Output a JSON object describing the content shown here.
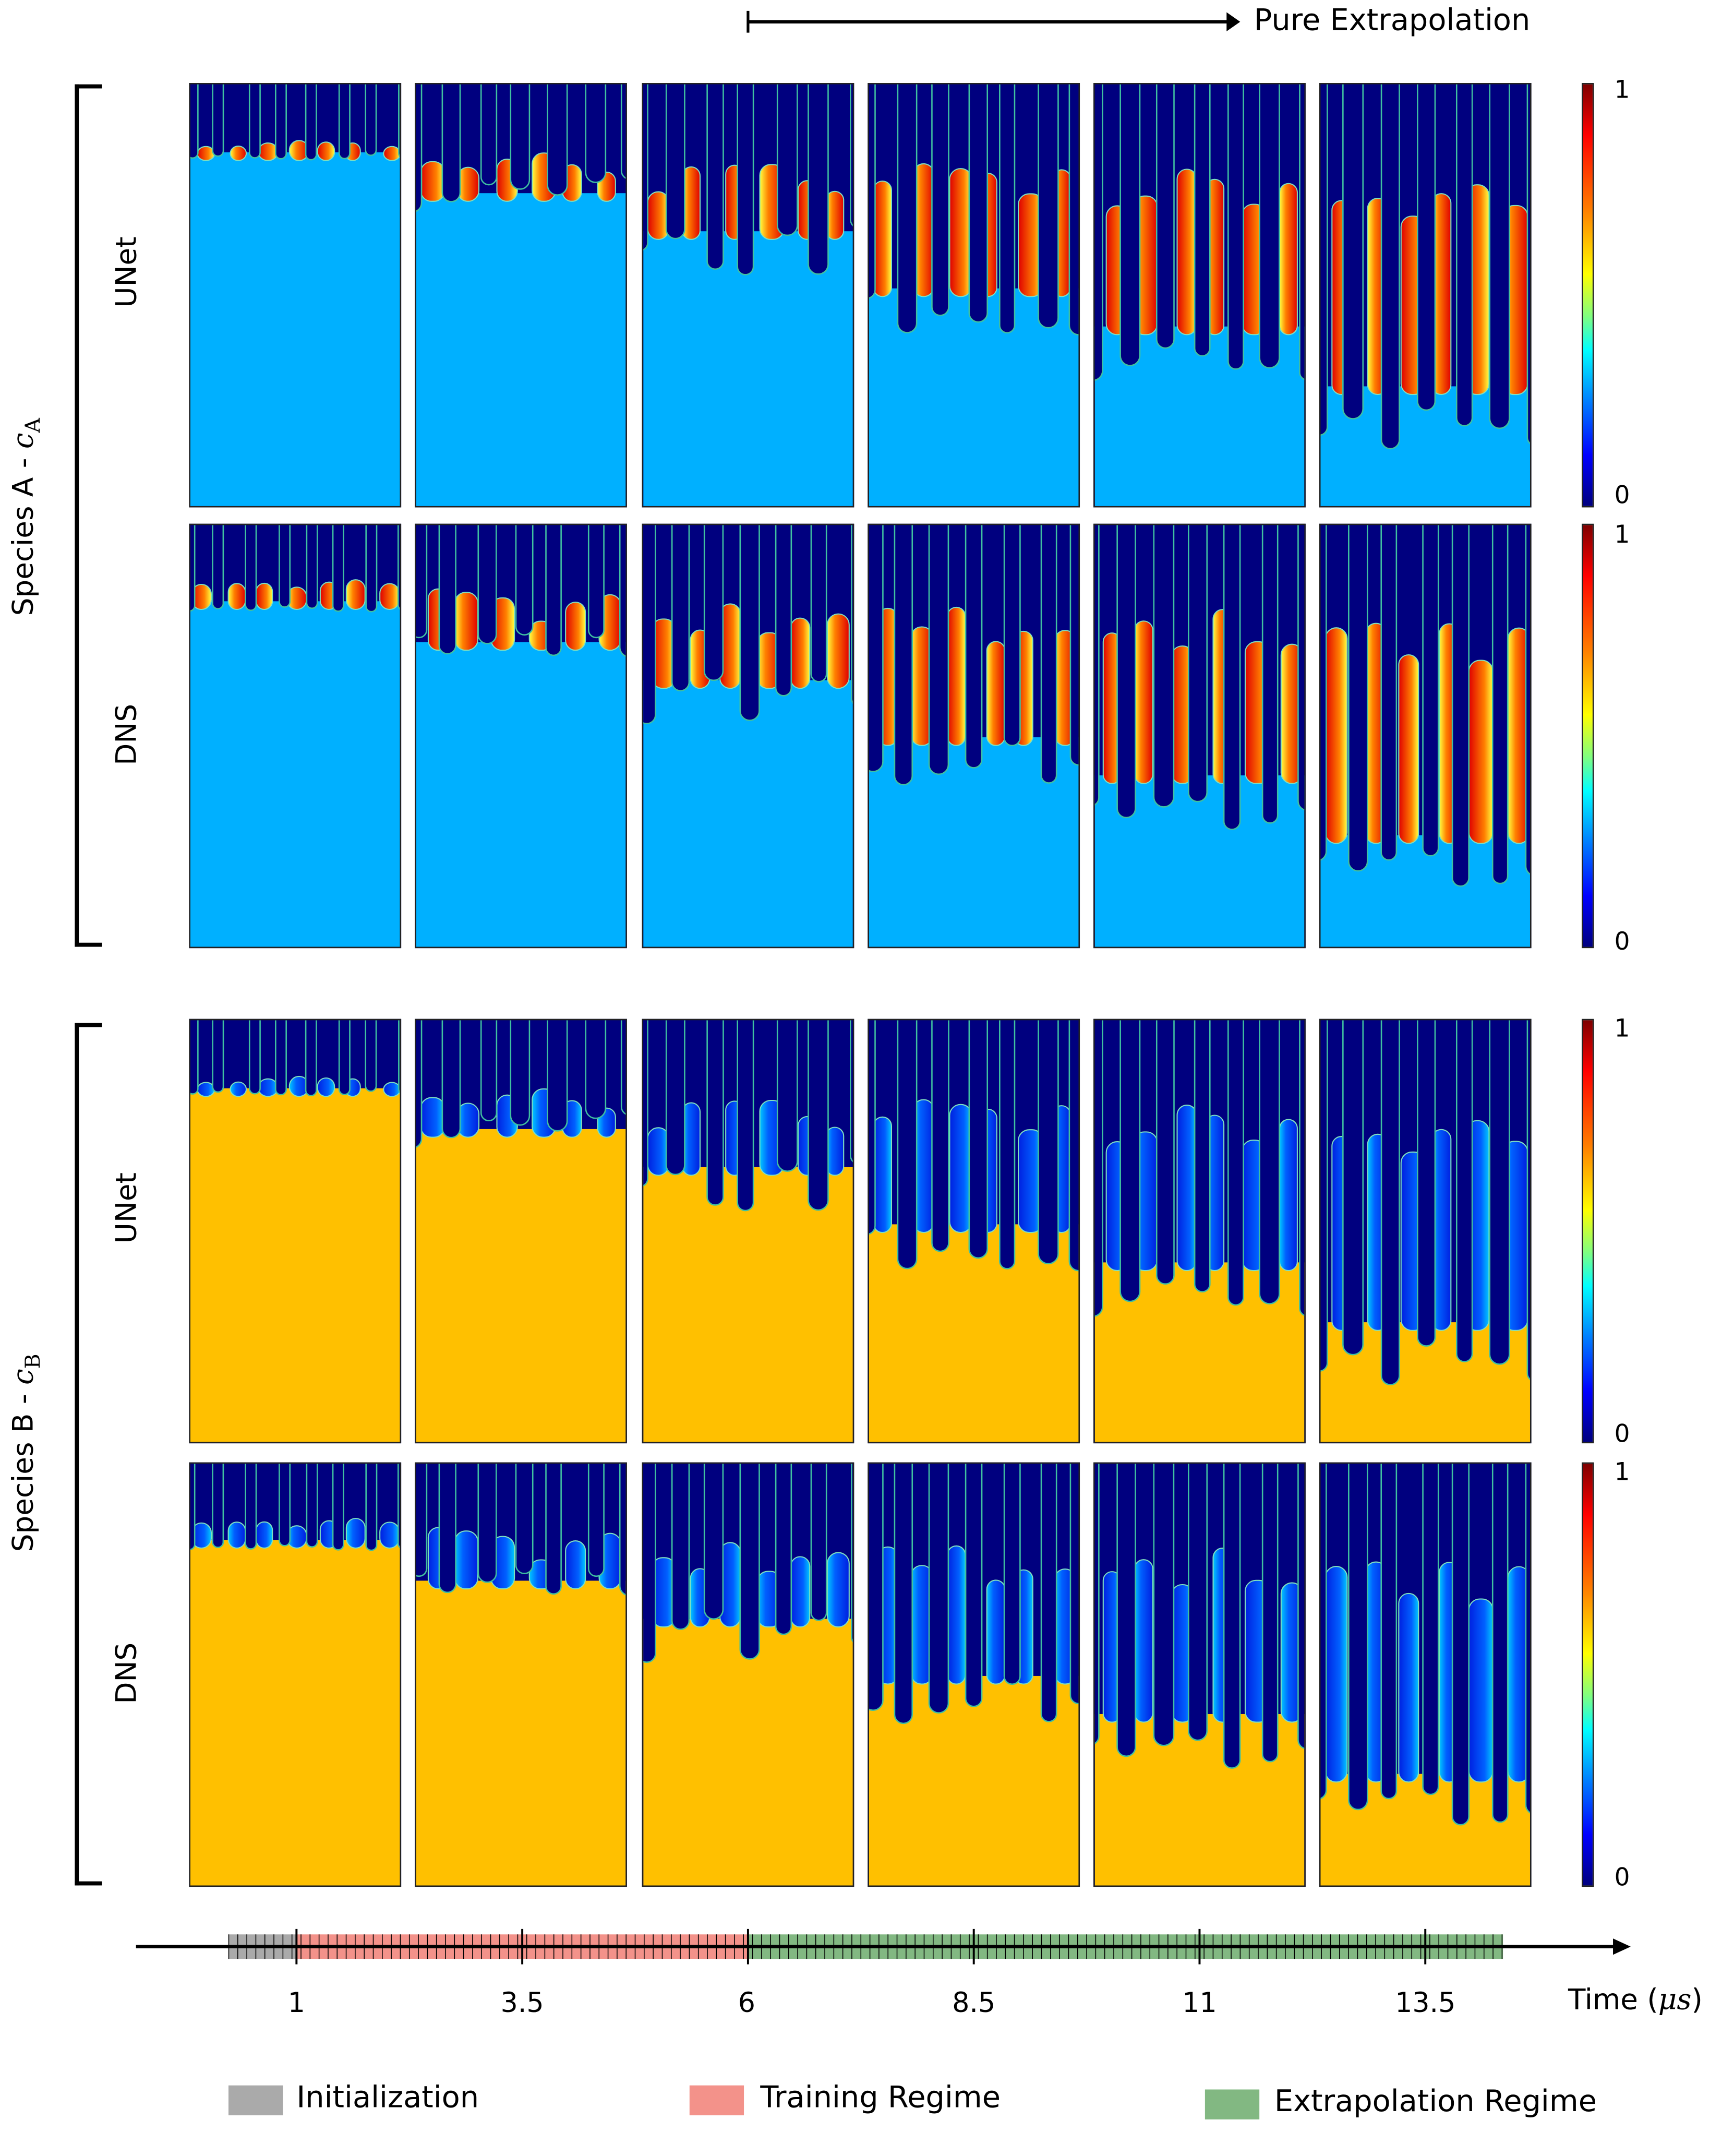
{
  "top_arrow": {
    "label": "Pure Extrapolation",
    "from_time": 6,
    "to_time": 11.45
  },
  "groups": [
    {
      "label_prefix": "Species A - ",
      "symbol": "c",
      "subscript": "A",
      "rows": [
        "UNet",
        "DNS"
      ],
      "bottom_color": "#00b0ff",
      "mix_colors": [
        "#ffff40",
        "#ff8000",
        "#e00000"
      ]
    },
    {
      "label_prefix": "Species B - ",
      "symbol": "c",
      "subscript": "B",
      "rows": [
        "UNet",
        "DNS"
      ],
      "bottom_color": "#ffc000",
      "mix_colors": [
        "#00c8ff",
        "#0060ff",
        "#0020e0"
      ]
    }
  ],
  "top_fluid_color": "#00007f",
  "snapshot_times": [
    1,
    3.5,
    6,
    8.5,
    11,
    13.5
  ],
  "colorbar": {
    "max_label": "1",
    "min_label": "0"
  },
  "timeline": {
    "tick_labels": [
      "1",
      "3.5",
      "6",
      "8.5",
      "11",
      "13.5"
    ],
    "axis_label": "Time (",
    "axis_unit": "μs",
    "axis_label_close": ")",
    "minor_tick_step": 0.1,
    "regions": [
      {
        "name": "Initialization",
        "start": 0.25,
        "end": 1,
        "color": "#aaaaaa"
      },
      {
        "name": "Training Regime",
        "start": 1,
        "end": 6,
        "color": "#f3928a"
      },
      {
        "name": "Extrapolation Regime",
        "start": 6,
        "end": 14.36,
        "color": "#82b882"
      }
    ]
  },
  "legend": [
    {
      "label": "Initialization",
      "color": "#aaaaaa"
    },
    {
      "label": "Training Regime",
      "color": "#f3928a"
    },
    {
      "label": "Extrapolation Regime",
      "color": "#82b882"
    }
  ]
}
